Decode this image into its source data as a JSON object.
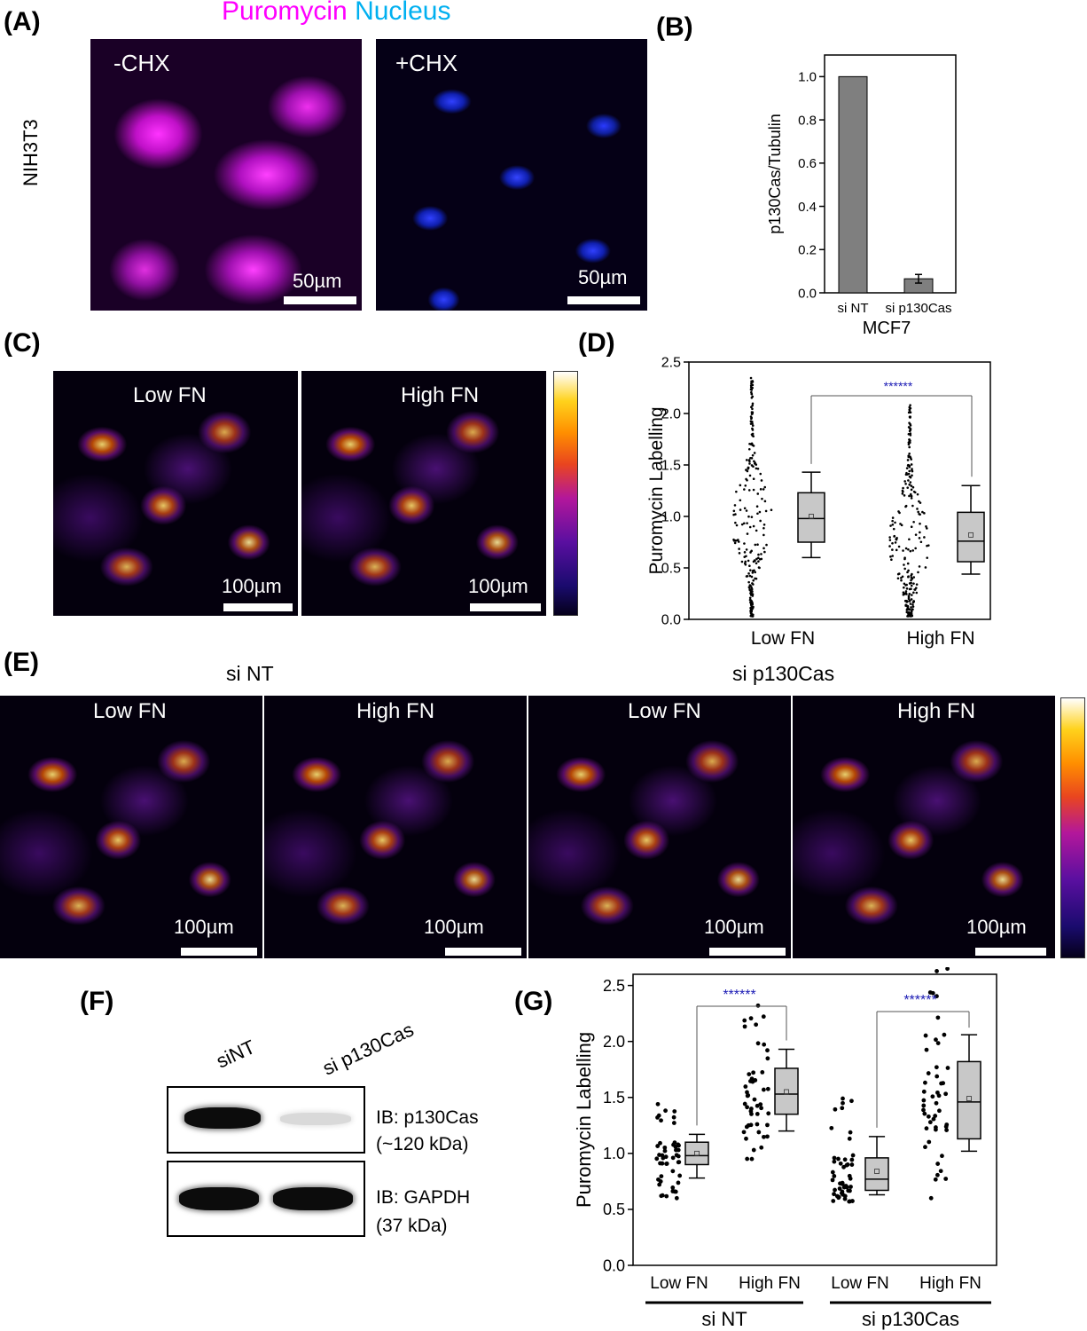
{
  "panelA": {
    "letter": "(A)",
    "title_puromycin": "Puromycin",
    "title_nucleus": "Nucleus",
    "row_label": "NIH3T3",
    "images": [
      {
        "label": "-CHX",
        "scale": "50µm"
      },
      {
        "label": "+CHX",
        "scale": "50µm"
      }
    ],
    "colors": {
      "puromycin": "#ff00ff",
      "nucleus": "#00b0f0"
    }
  },
  "panelB": {
    "letter": "(B)"
  },
  "panelC": {
    "letter": "(C)",
    "images": [
      {
        "label": "Low FN",
        "scale": "100µm"
      },
      {
        "label": "High FN",
        "scale": "100µm"
      }
    ]
  },
  "panelD": {
    "letter": "(D)"
  },
  "panelE": {
    "letter": "(E)",
    "groups": [
      "si NT",
      "si p130Cas"
    ],
    "images": [
      {
        "label": "Low FN",
        "scale": "100µm"
      },
      {
        "label": "High FN",
        "scale": "100µm"
      },
      {
        "label": "Low FN",
        "scale": "100µm"
      },
      {
        "label": "High FN",
        "scale": "100µm"
      }
    ]
  },
  "panelF": {
    "letter": "(F)",
    "lanes": [
      "siNT",
      "si p130Cas"
    ],
    "blots": [
      {
        "ib": "IB: p130Cas",
        "size": "(~120 kDa)"
      },
      {
        "ib": "IB: GAPDH",
        "size": "(37 kDa)"
      }
    ]
  },
  "panelG": {
    "letter": "(G)"
  },
  "chart_data": [
    {
      "panel": "B",
      "type": "bar",
      "categories": [
        "si NT",
        "si p130Cas"
      ],
      "values": [
        1.0,
        0.065
      ],
      "errors": [
        0.0,
        0.02
      ],
      "ylabel": "p130Cas/Tubulin",
      "xlabel": "MCF7",
      "ylim": [
        0,
        1.1
      ],
      "yticks": [
        "0.0",
        "0.2",
        "0.4",
        "0.6",
        "0.8",
        "1.0"
      ],
      "bar_color": "#7f7f7f"
    },
    {
      "panel": "D",
      "type": "box",
      "categories": [
        "Low FN",
        "High FN"
      ],
      "ylabel": "Puromycin Labelling",
      "ylim": [
        0,
        2.5
      ],
      "yticks": [
        "0.0",
        "0.5",
        "1.0",
        "1.5",
        "2.0",
        "2.5"
      ],
      "boxes": [
        {
          "whisker_low": 0.6,
          "q1": 0.75,
          "median": 0.98,
          "q3": 1.23,
          "whisker_high": 1.43,
          "mean": 1.0
        },
        {
          "whisker_low": 0.44,
          "q1": 0.56,
          "median": 0.76,
          "q3": 1.04,
          "whisker_high": 1.3,
          "mean": 0.82
        }
      ],
      "points_range": [
        [
          0.03,
          2.35
        ],
        [
          0.03,
          2.1
        ]
      ],
      "significance": "******",
      "sig_color": "#1a1ab4"
    },
    {
      "panel": "G",
      "type": "box",
      "categories": [
        "Low FN",
        "High FN",
        "Low FN",
        "High FN"
      ],
      "groups": [
        "si NT",
        "si p130Cas"
      ],
      "ylabel": "Puromycin Labelling",
      "ylim": [
        0,
        2.6
      ],
      "yticks": [
        "0.0",
        "0.5",
        "1.0",
        "1.5",
        "2.0",
        "2.5"
      ],
      "boxes": [
        {
          "whisker_low": 0.78,
          "q1": 0.9,
          "median": 0.98,
          "q3": 1.1,
          "whisker_high": 1.17,
          "mean": 1.0
        },
        {
          "whisker_low": 1.2,
          "q1": 1.35,
          "median": 1.53,
          "q3": 1.76,
          "whisker_high": 1.93,
          "mean": 1.55
        },
        {
          "whisker_low": 0.63,
          "q1": 0.67,
          "median": 0.77,
          "q3": 0.96,
          "whisker_high": 1.15,
          "mean": 0.84
        },
        {
          "whisker_low": 1.02,
          "q1": 1.13,
          "median": 1.46,
          "q3": 1.82,
          "whisker_high": 2.06,
          "mean": 1.49
        }
      ],
      "points_range": [
        [
          0.6,
          1.44
        ],
        [
          0.95,
          2.32
        ],
        [
          0.57,
          1.49
        ],
        [
          0.6,
          2.65
        ]
      ],
      "significance": [
        "******",
        "******"
      ],
      "sig_color": "#1a1ab4"
    }
  ]
}
